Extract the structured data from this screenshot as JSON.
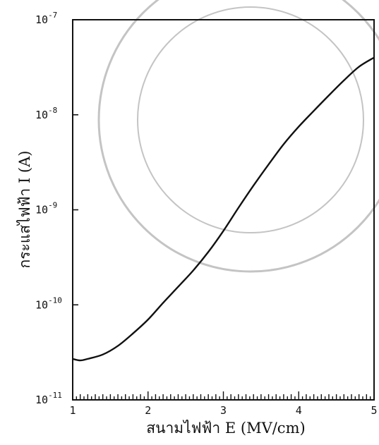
{
  "chart_data": {
    "type": "line",
    "title": "",
    "xlabel": "สนามไฟฟ้า E (MV/cm)",
    "ylabel": "กระแสไฟฟ้า I (A)",
    "x_scale": "linear",
    "y_scale": "log",
    "xlim": [
      1,
      5
    ],
    "ylim": [
      1e-11,
      1e-07
    ],
    "x_ticks": [
      "1",
      "2",
      "3",
      "4",
      "5"
    ],
    "y_ticks": [
      {
        "base": "10",
        "exp": "-11",
        "value": 1e-11
      },
      {
        "base": "10",
        "exp": "-10",
        "value": 1e-10
      },
      {
        "base": "10",
        "exp": "-9",
        "value": 1e-09
      },
      {
        "base": "10",
        "exp": "-8",
        "value": 1e-08
      },
      {
        "base": "10",
        "exp": "-7",
        "value": 1e-07
      }
    ],
    "grid": false,
    "series": [
      {
        "color": "#111111",
        "x": [
          1.0,
          1.1,
          1.2,
          1.4,
          1.6,
          1.8,
          2.0,
          2.2,
          2.4,
          2.6,
          2.8,
          3.0,
          3.2,
          3.4,
          3.6,
          3.8,
          4.0,
          4.2,
          4.4,
          4.6,
          4.8,
          5.0
        ],
        "y": [
          2.7e-11,
          2.6e-11,
          2.7e-11,
          3e-11,
          3.7e-11,
          5e-11,
          7e-11,
          1.05e-10,
          1.55e-10,
          2.3e-10,
          3.6e-10,
          6e-10,
          1.05e-09,
          1.8e-09,
          3e-09,
          4.9e-09,
          7.5e-09,
          1.1e-08,
          1.6e-08,
          2.3e-08,
          3.2e-08,
          4e-08
        ]
      }
    ]
  }
}
